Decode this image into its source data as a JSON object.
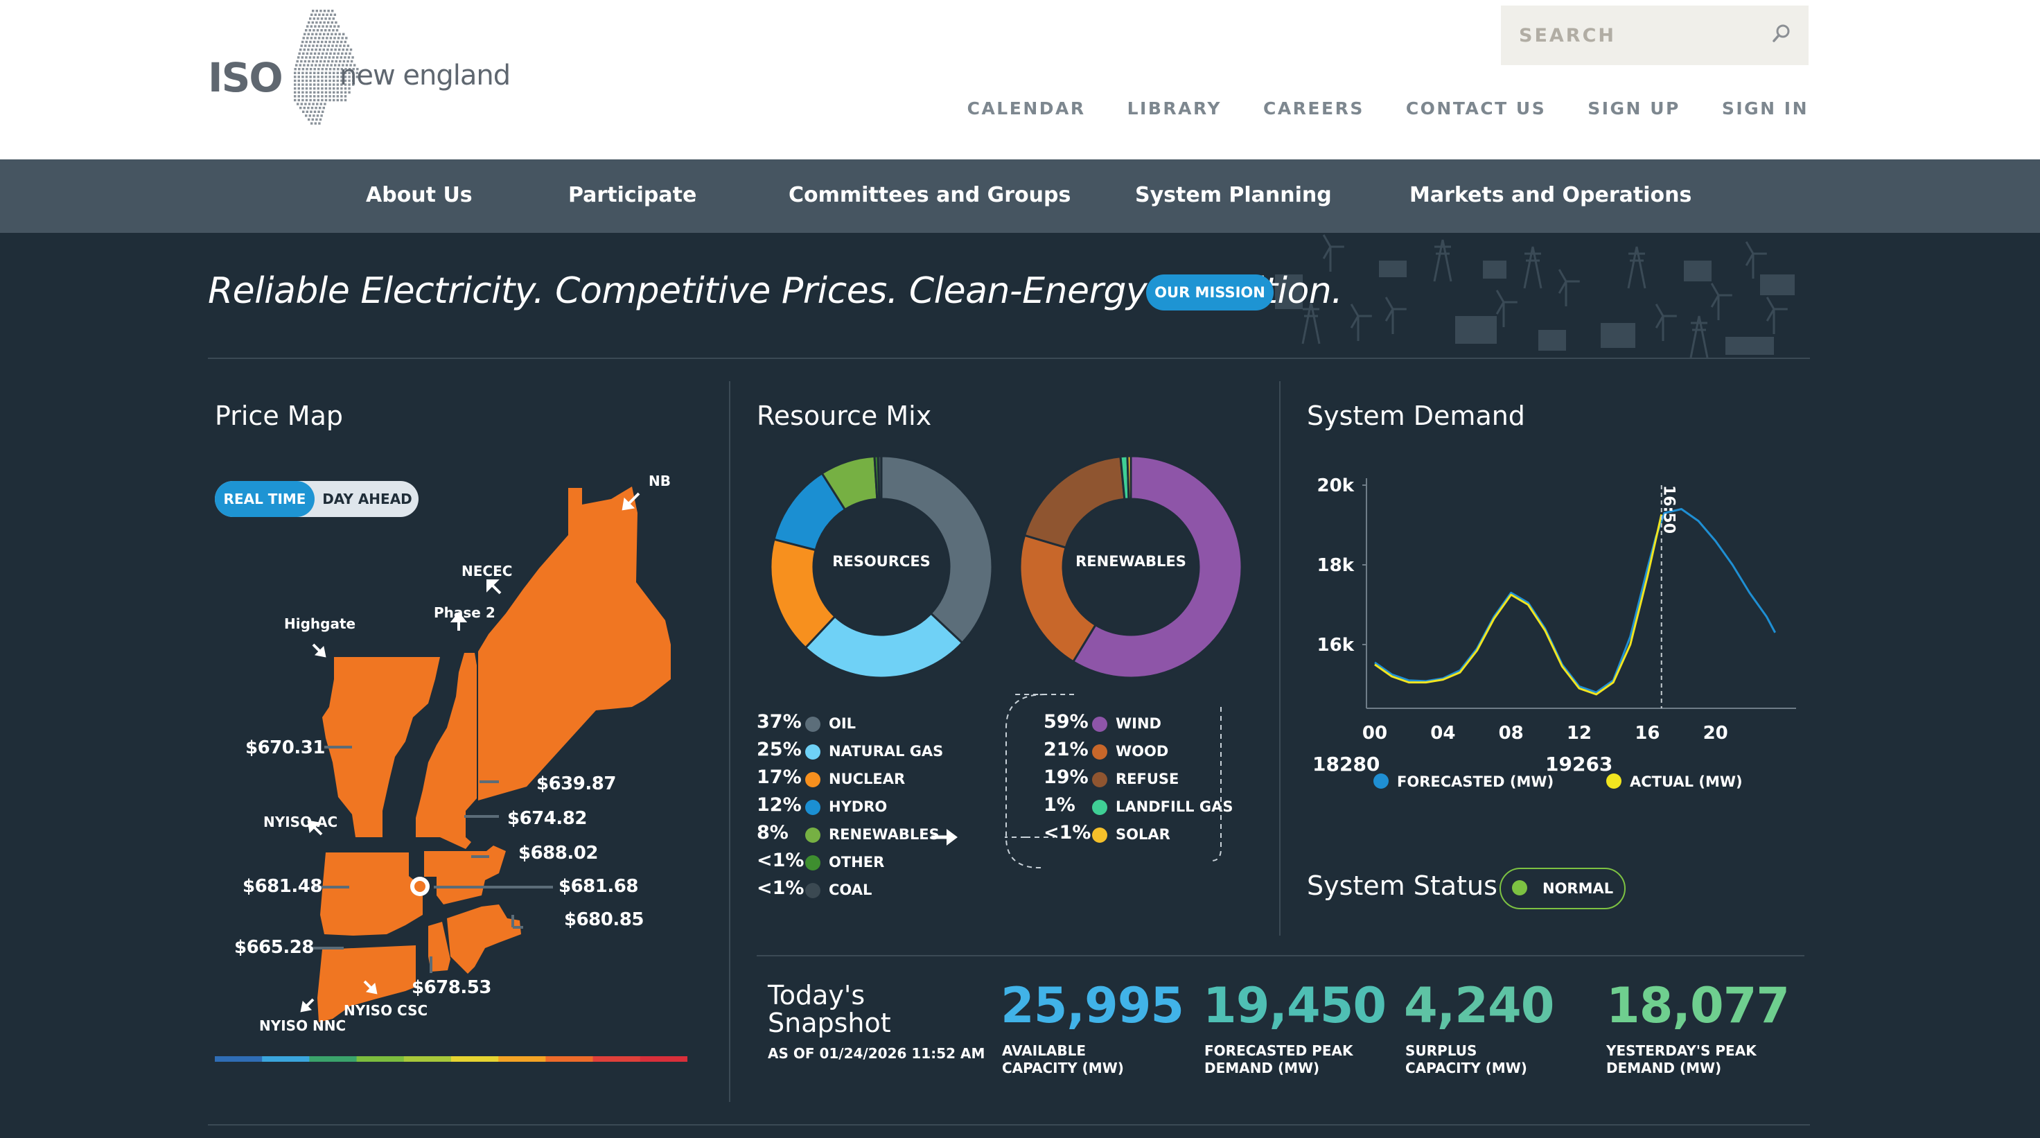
{
  "header": {
    "logo": {
      "iso": "ISO",
      "text": "new england"
    },
    "search": {
      "placeholder": "SEARCH"
    },
    "utility_nav": [
      "CALENDAR",
      "LIBRARY",
      "CAREERS",
      "CONTACT US",
      "SIGN UP",
      "SIGN IN"
    ]
  },
  "main_nav": [
    "About Us",
    "Participate",
    "Committees and Groups",
    "System Planning",
    "Markets and Operations"
  ],
  "hero": {
    "tagline": "Reliable Electricity. Competitive Prices. Clean-Energy Transition.",
    "mission_button": "OUR MISSION"
  },
  "price_map": {
    "title": "Price Map",
    "toggle": {
      "real_time": "REAL TIME",
      "day_ahead": "DAY AHEAD"
    },
    "interfaces": [
      "NB",
      "NECEC",
      "Phase 2",
      "Highgate",
      "NYISO AC",
      "NYISO CSC",
      "NYISO NNC"
    ],
    "prices": [
      "$670.31",
      "$639.87",
      "$674.82",
      "$688.02",
      "$681.48",
      "$681.68",
      "$680.85",
      "$665.28",
      "$678.53"
    ],
    "zone_color": "#f07622",
    "scale_colors": [
      "#2f6db5",
      "#3aa5dd",
      "#3aa36b",
      "#7cbd3e",
      "#a8c83a",
      "#e6d431",
      "#f4a325",
      "#ee6b2a",
      "#e0403a",
      "#d92f3a"
    ]
  },
  "resource_mix": {
    "title": "Resource Mix",
    "resources_label": "RESOURCES",
    "renewables_label": "RENEWABLES",
    "resources": [
      {
        "pct": "37%",
        "label": "OIL",
        "value": 37,
        "color": "#5c6e7a"
      },
      {
        "pct": "25%",
        "label": "NATURAL GAS",
        "value": 25,
        "color": "#6fd1f6"
      },
      {
        "pct": "17%",
        "label": "NUCLEAR",
        "value": 17,
        "color": "#f7901e"
      },
      {
        "pct": "12%",
        "label": "HYDRO",
        "value": 12,
        "color": "#1b8fd2"
      },
      {
        "pct": "8%",
        "label": "RENEWABLES",
        "value": 8,
        "color": "#76b043"
      },
      {
        "pct": "<1%",
        "label": "OTHER",
        "value": 0.5,
        "color": "#3e8e2f"
      },
      {
        "pct": "<1%",
        "label": "COAL",
        "value": 0.5,
        "color": "#3b4952"
      }
    ],
    "renewables": [
      {
        "pct": "59%",
        "label": "WIND",
        "value": 59,
        "color": "#8e55a8"
      },
      {
        "pct": "21%",
        "label": "WOOD",
        "value": 21,
        "color": "#c8672a"
      },
      {
        "pct": "19%",
        "label": "REFUSE",
        "value": 19,
        "color": "#8f5530"
      },
      {
        "pct": "1%",
        "label": "LANDFILL GAS",
        "value": 1,
        "color": "#3fcf95"
      },
      {
        "pct": "<1%",
        "label": "SOLAR",
        "value": 0.5,
        "color": "#f5c02a"
      }
    ]
  },
  "system_demand": {
    "title": "System Demand",
    "now_label": "16:50",
    "forecasted_value": "18280",
    "forecasted_label": "FORECASTED (MW)",
    "actual_value": "19263",
    "actual_label": "ACTUAL (MW)",
    "colors": {
      "forecast": "#1f8fd3",
      "actual": "#f1e520"
    }
  },
  "chart_data": {
    "type": "line",
    "title": "System Demand",
    "xlabel": "",
    "ylabel": "",
    "xlim": [
      0,
      24
    ],
    "ylim": [
      14400,
      20000
    ],
    "x_ticks": [
      "00",
      "04",
      "08",
      "12",
      "16",
      "20"
    ],
    "y_ticks": [
      "20k",
      "18k",
      "16k"
    ],
    "series": [
      {
        "name": "FORECASTED (MW)",
        "x": [
          0,
          1,
          2,
          3,
          4,
          5,
          6,
          7,
          8,
          9,
          10,
          11,
          12,
          13,
          14,
          15,
          16,
          16.5,
          17,
          18,
          19,
          20,
          21,
          22,
          23,
          23.5
        ],
        "values": [
          15550,
          15250,
          15100,
          15080,
          15150,
          15350,
          15900,
          16700,
          17300,
          17050,
          16400,
          15500,
          14950,
          14800,
          15100,
          16200,
          17900,
          18700,
          19300,
          19400,
          19100,
          18600,
          18000,
          17300,
          16700,
          16300
        ]
      },
      {
        "name": "ACTUAL (MW)",
        "x": [
          0,
          1,
          2,
          3,
          4,
          5,
          6,
          7,
          8,
          9,
          10,
          11,
          12,
          13,
          14,
          15,
          16,
          16.83
        ],
        "values": [
          15500,
          15200,
          15050,
          15050,
          15120,
          15300,
          15850,
          16650,
          17250,
          17000,
          16350,
          15450,
          14900,
          14750,
          15050,
          16000,
          17700,
          19263
        ]
      }
    ]
  },
  "system_status": {
    "title": "System Status",
    "status": "NORMAL",
    "color": "#7dc242"
  },
  "snapshot": {
    "title_line1": "Today's",
    "title_line2": "Snapshot",
    "as_of": "AS OF 01/24/2026 11:52 AM",
    "metrics": [
      {
        "value": "25,995",
        "label_line1": "AVAILABLE",
        "label_line2": "CAPACITY (MW)",
        "color": "#41b3e8"
      },
      {
        "value": "19,450",
        "label_line1": "FORECASTED PEAK",
        "label_line2": "DEMAND (MW)",
        "color": "#4fbfb4"
      },
      {
        "value": "4,240",
        "label_line1": "SURPLUS",
        "label_line2": "CAPACITY (MW)",
        "color": "#5ec3a4"
      },
      {
        "value": "18,077",
        "label_line1": "YESTERDAY'S PEAK",
        "label_line2": "DEMAND (MW)",
        "color": "#6fcf8f"
      }
    ]
  }
}
